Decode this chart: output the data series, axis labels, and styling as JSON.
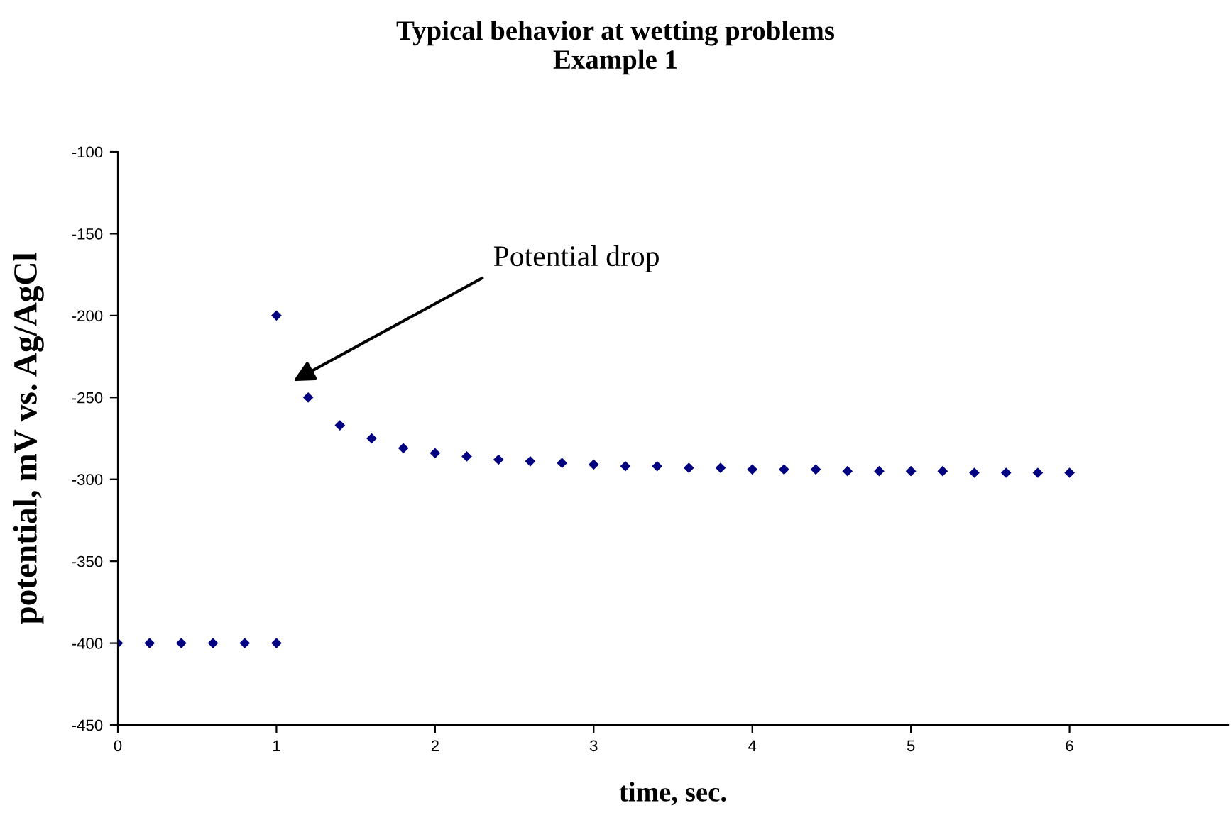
{
  "chart_data": {
    "type": "scatter",
    "title": "Typical behavior at wetting problems\nExample 1",
    "xlabel": "time, sec.",
    "ylabel": "potential, mV vs. Ag/AgCl",
    "x": [
      0,
      0.2,
      0.4,
      0.6,
      0.8,
      1,
      1,
      1.2,
      1.4,
      1.6,
      1.8,
      2,
      2.2,
      2.4,
      2.6,
      2.8,
      3,
      3.2,
      3.4,
      3.6,
      3.8,
      4,
      4.2,
      4.4,
      4.6,
      4.8,
      5,
      5.2,
      5.4,
      5.6,
      5.8,
      6
    ],
    "series": [
      {
        "color": "#000080",
        "values": [
          -400,
          -400,
          -400,
          -400,
          -400,
          -400,
          -200,
          -250,
          -267,
          -275,
          -281,
          -284,
          -286,
          -288,
          -289,
          -290,
          -291,
          -292,
          -292,
          -293,
          -293,
          -294,
          -294,
          -294,
          -295,
          -295,
          -295,
          -295,
          -296,
          -296,
          -296,
          -296
        ]
      }
    ],
    "marker": "diamond",
    "grid": false,
    "legend": false,
    "xlim": [
      0,
      7
    ],
    "xticks": [
      0,
      1,
      2,
      3,
      4,
      5,
      6
    ],
    "ylim": [
      -450,
      -100
    ],
    "yticks": [
      -450,
      -400,
      -350,
      -300,
      -250,
      -200,
      -150,
      -100
    ],
    "annotations": [
      "Potential drop"
    ]
  }
}
